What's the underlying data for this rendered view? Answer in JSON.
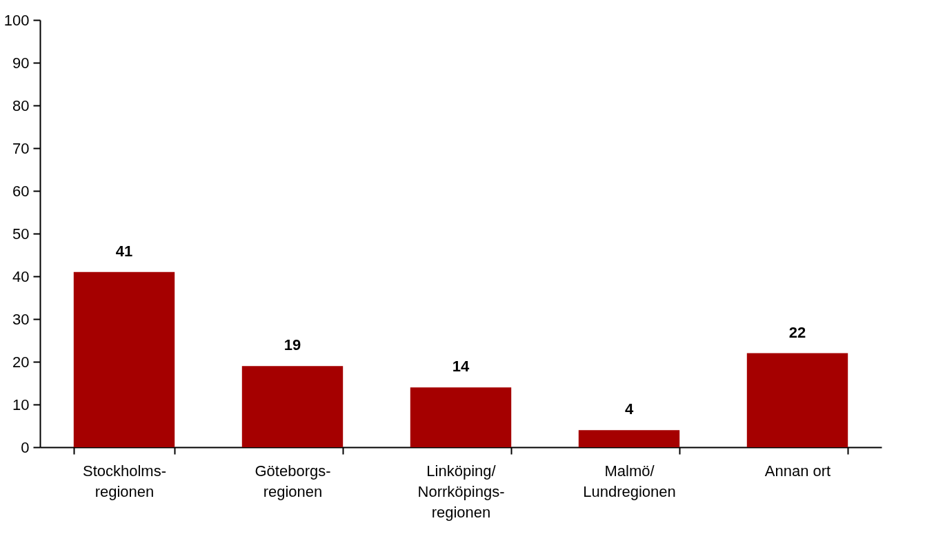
{
  "chart_data": {
    "type": "bar",
    "categories": [
      "Stockholms-\nregionen",
      "Göteborgs-\nregionen",
      "Linköping/\nNorrköpings-\nregionen",
      "Malmö/\nLundregionen",
      "Annan ort"
    ],
    "values": [
      41,
      19,
      14,
      4,
      22
    ],
    "color": "#a50000",
    "ylim": [
      0,
      100
    ],
    "yticks": [
      0,
      10,
      20,
      30,
      40,
      50,
      60,
      70,
      80,
      90,
      100
    ],
    "data_labels": true,
    "grid": false
  }
}
